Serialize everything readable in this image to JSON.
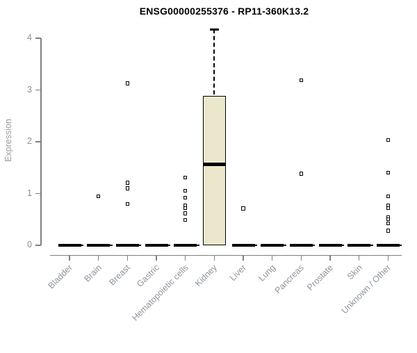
{
  "chart_data": {
    "type": "boxplot",
    "title": "ENSG00000255376 - RP11-360K13.2",
    "ylabel": "Expression",
    "xlabel": "",
    "ylim": [
      0,
      4
    ],
    "yticks": [
      0,
      1,
      2,
      3,
      4
    ],
    "grid": false,
    "legend": "none",
    "categories": [
      "Bladder",
      "Brain",
      "Breast",
      "Gastric",
      "Hematopoietic cells",
      "Kidney",
      "Liver",
      "Lung",
      "Pancreas",
      "Prostate",
      "Skin",
      "Unknown / Other"
    ],
    "boxes": [
      {
        "category": "Bladder",
        "q1": 0,
        "median": 0,
        "q3": 0,
        "whisker_low": 0,
        "whisker_high": 0,
        "outliers": []
      },
      {
        "category": "Brain",
        "q1": 0,
        "median": 0,
        "q3": 0,
        "whisker_low": 0,
        "whisker_high": 0,
        "outliers": [
          0.95
        ]
      },
      {
        "category": "Breast",
        "q1": 0,
        "median": 0,
        "q3": 0,
        "whisker_low": 0,
        "whisker_high": 0,
        "outliers": [
          3.13,
          1.21,
          1.1,
          0.8
        ]
      },
      {
        "category": "Gastric",
        "q1": 0,
        "median": 0,
        "q3": 0,
        "whisker_low": 0,
        "whisker_high": 0,
        "outliers": []
      },
      {
        "category": "Hematopoietic cells",
        "q1": 0,
        "median": 0,
        "q3": 0,
        "whisker_low": 0,
        "whisker_high": 0,
        "outliers": [
          1.31,
          1.05,
          0.92,
          0.77,
          0.72,
          0.62,
          0.49
        ]
      },
      {
        "category": "Kidney",
        "q1": 0,
        "median": 1.56,
        "q3": 2.88,
        "whisker_low": 0,
        "whisker_high": 4.17,
        "outliers": []
      },
      {
        "category": "Liver",
        "q1": 0,
        "median": 0,
        "q3": 0,
        "whisker_low": 0,
        "whisker_high": 0,
        "outliers": [
          0.71
        ]
      },
      {
        "category": "Lung",
        "q1": 0,
        "median": 0,
        "q3": 0,
        "whisker_low": 0,
        "whisker_high": 0,
        "outliers": []
      },
      {
        "category": "Pancreas",
        "q1": 0,
        "median": 0,
        "q3": 0,
        "whisker_low": 0,
        "whisker_high": 0,
        "outliers": [
          3.19,
          1.38
        ]
      },
      {
        "category": "Prostate",
        "q1": 0,
        "median": 0,
        "q3": 0,
        "whisker_low": 0,
        "whisker_high": 0,
        "outliers": []
      },
      {
        "category": "Skin",
        "q1": 0,
        "median": 0,
        "q3": 0,
        "whisker_low": 0,
        "whisker_high": 0,
        "outliers": []
      },
      {
        "category": "Unknown / Other",
        "q1": 0,
        "median": 0,
        "q3": 0,
        "whisker_low": 0,
        "whisker_high": 0,
        "outliers": [
          2.03,
          1.4,
          0.95,
          0.77,
          0.72,
          0.54,
          0.5,
          0.42,
          0.28
        ]
      }
    ],
    "colors": {
      "box_fill": "#ECE7CC",
      "box_stroke": "#000000",
      "axis": "#7f7f7f",
      "y_tick_label": "#87909b",
      "x_tick_label": "#8f959d",
      "title": "#000000"
    }
  }
}
